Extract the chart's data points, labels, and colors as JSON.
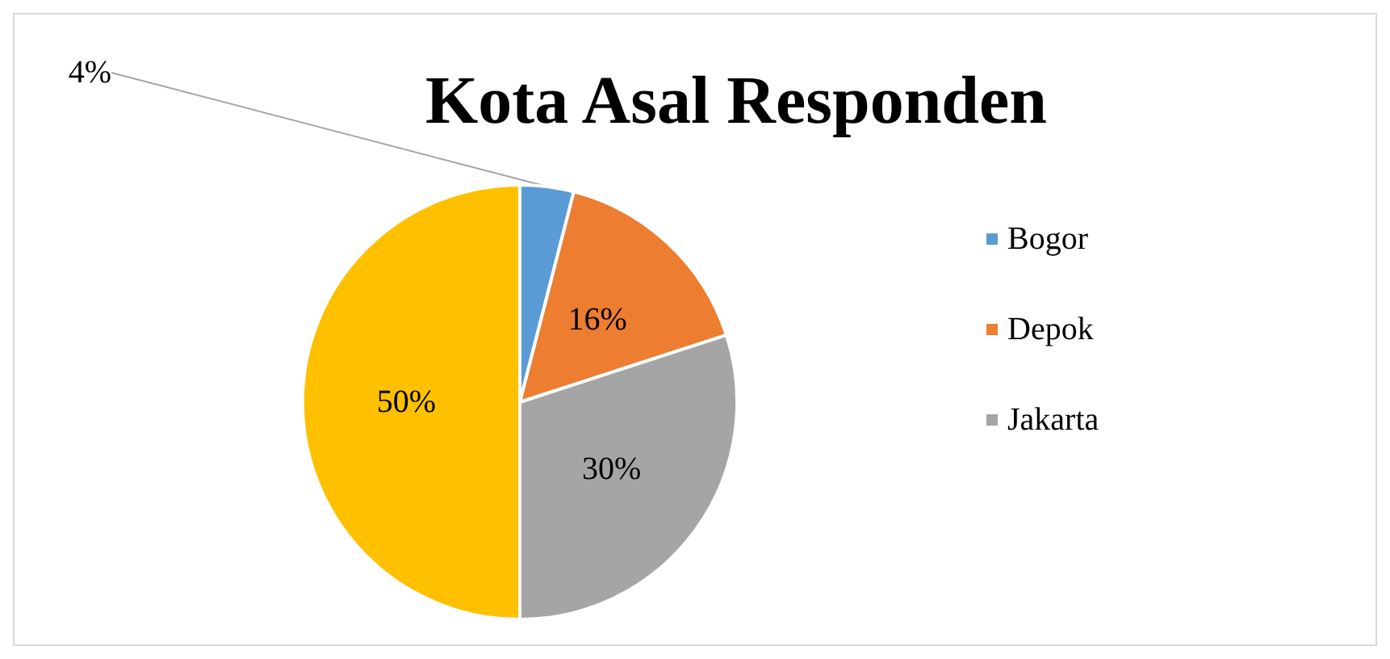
{
  "chart_data": {
    "type": "pie",
    "title": "Kota Asal Responden",
    "categories": [
      "Bogor",
      "Depok",
      "Jakarta",
      null
    ],
    "values": [
      4,
      16,
      30,
      50
    ],
    "value_labels": [
      "4%",
      "16%",
      "30%",
      "50%"
    ],
    "colors": [
      "#5b9bd5",
      "#ed7d31",
      "#a5a5a5",
      "#ffc000"
    ],
    "legend": "right"
  }
}
